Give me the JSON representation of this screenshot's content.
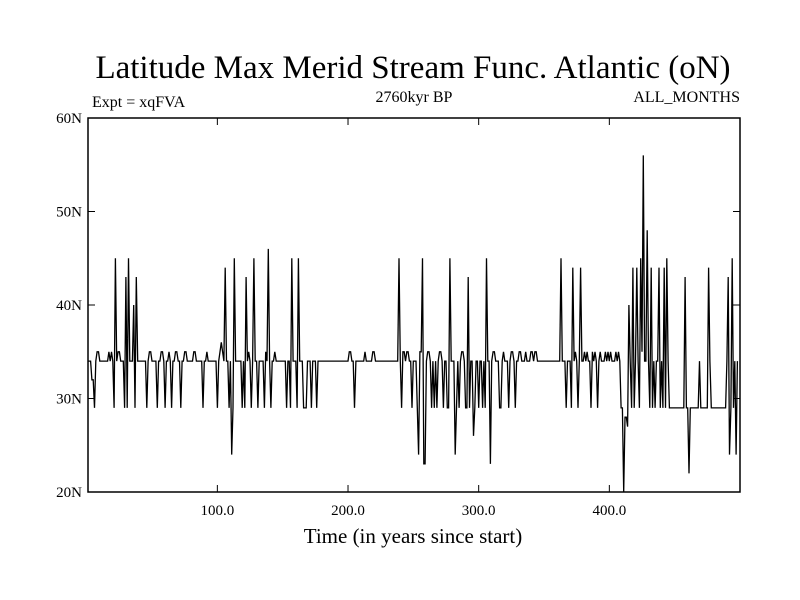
{
  "chart_data": {
    "type": "line",
    "title": "Latitude Max Merid Stream Func. Atlantic (oN)",
    "subtitle_left": "Expt = xqFVA",
    "subtitle_center": "2760kyr BP",
    "subtitle_right": "ALL_MONTHS",
    "xlabel": "Time (in years since start)",
    "ylabel": "",
    "xlim": [
      1,
      500
    ],
    "ylim": [
      20,
      60
    ],
    "x_ticks": [
      {
        "value": 100,
        "label": "100.0"
      },
      {
        "value": 200,
        "label": "200.0"
      },
      {
        "value": 300,
        "label": "300.0"
      },
      {
        "value": 400,
        "label": "400.0"
      }
    ],
    "y_ticks": [
      {
        "value": 20,
        "label": "20N"
      },
      {
        "value": 30,
        "label": "30N"
      },
      {
        "value": 40,
        "label": "40N"
      },
      {
        "value": 50,
        "label": "50N"
      },
      {
        "value": 60,
        "label": "60N"
      }
    ],
    "series": [
      {
        "name": "",
        "color": "#000000",
        "x_start": 1,
        "x_step": 1,
        "values": [
          34,
          34,
          34,
          32,
          32,
          29,
          34,
          35,
          35,
          34,
          34,
          34,
          34,
          34,
          34,
          34,
          35,
          34,
          35,
          34,
          29,
          45,
          34,
          35,
          35,
          34,
          34,
          34,
          29,
          43,
          29,
          45,
          34,
          34,
          34,
          40,
          29,
          43,
          34,
          34,
          34,
          34,
          34,
          34,
          34,
          29,
          34,
          35,
          35,
          34,
          34,
          34,
          34,
          29,
          34,
          34,
          35,
          35,
          34,
          29,
          34,
          34,
          35,
          34,
          29,
          34,
          34,
          35,
          35,
          34,
          34,
          29,
          34,
          34,
          35,
          35,
          34,
          34,
          34,
          34,
          34,
          35,
          35,
          34,
          34,
          34,
          34,
          34,
          29,
          34,
          34,
          35,
          34,
          34,
          34,
          34,
          34,
          34,
          34,
          29,
          34,
          35,
          36,
          35,
          34,
          44,
          34,
          34,
          29,
          34,
          24,
          29,
          45,
          34,
          34,
          34,
          34,
          34,
          29,
          34,
          29,
          43,
          34,
          35,
          34,
          29,
          34,
          45,
          34,
          34,
          29,
          34,
          34,
          34,
          34,
          29,
          35,
          34,
          46,
          34,
          29,
          34,
          34,
          35,
          34,
          34,
          34,
          34,
          34,
          34,
          34,
          34,
          29,
          34,
          34,
          29,
          45,
          34,
          34,
          34,
          29,
          45,
          34,
          34,
          34,
          29,
          29,
          29,
          34,
          34,
          34,
          29,
          34,
          34,
          34,
          29,
          34,
          34,
          34,
          34,
          34,
          34,
          34,
          34,
          34,
          34,
          34,
          34,
          34,
          34,
          34,
          34,
          34,
          34,
          34,
          34,
          34,
          34,
          34,
          34,
          35,
          35,
          34,
          34,
          29,
          34,
          34,
          34,
          34,
          34,
          34,
          34,
          35,
          34,
          34,
          34,
          34,
          34,
          35,
          35,
          34,
          34,
          34,
          34,
          34,
          34,
          34,
          34,
          34,
          34,
          34,
          34,
          34,
          34,
          34,
          34,
          34,
          34,
          45,
          34,
          29,
          35,
          35,
          34,
          35,
          35,
          34,
          34,
          29,
          34,
          34,
          34,
          29,
          24,
          35,
          35,
          45,
          23,
          23,
          34,
          35,
          35,
          34,
          29,
          34,
          29,
          34,
          29,
          34,
          35,
          35,
          34,
          29,
          34,
          34,
          29,
          29,
          45,
          34,
          34,
          34,
          24,
          29,
          34,
          29,
          34,
          35,
          35,
          34,
          29,
          29,
          43,
          29,
          34,
          34,
          26,
          29,
          34,
          34,
          29,
          34,
          34,
          29,
          34,
          29,
          45,
          34,
          34,
          23,
          34,
          35,
          35,
          34,
          34,
          34,
          29,
          29,
          34,
          35,
          34,
          34,
          34,
          29,
          34,
          35,
          35,
          34,
          29,
          34,
          34,
          35,
          35,
          34,
          34,
          34,
          35,
          34,
          34,
          34,
          35,
          35,
          34,
          35,
          35,
          34,
          34,
          34,
          34,
          34,
          34,
          34,
          34,
          34,
          34,
          34,
          34,
          34,
          34,
          34,
          34,
          34,
          34,
          45,
          34,
          34,
          34,
          29,
          34,
          34,
          34,
          29,
          44,
          34,
          35,
          34,
          29,
          34,
          44,
          34,
          34,
          35,
          34,
          35,
          34,
          34,
          29,
          35,
          34,
          35,
          34,
          29,
          34,
          35,
          34,
          34,
          34,
          35,
          34,
          35,
          34,
          35,
          34,
          34,
          34,
          35,
          34,
          35,
          34,
          29,
          29,
          20,
          28,
          28,
          27,
          40,
          34,
          29,
          44,
          29,
          34,
          44,
          34,
          29,
          45,
          35,
          56,
          34,
          34,
          48,
          34,
          29,
          44,
          29,
          34,
          29,
          34,
          34,
          44,
          29,
          34,
          29,
          44,
          29,
          45,
          34,
          29,
          29,
          29,
          29,
          29,
          29,
          29,
          29,
          29,
          29,
          29,
          29,
          43,
          29,
          29,
          22,
          29,
          29,
          29,
          29,
          29,
          29,
          29,
          34,
          29,
          29,
          29,
          29,
          29,
          29,
          44,
          34,
          29,
          29,
          29,
          29,
          29,
          29,
          29,
          29,
          29,
          29,
          29,
          29,
          34,
          43,
          24,
          29,
          45,
          29,
          34,
          24,
          34
        ]
      }
    ]
  }
}
